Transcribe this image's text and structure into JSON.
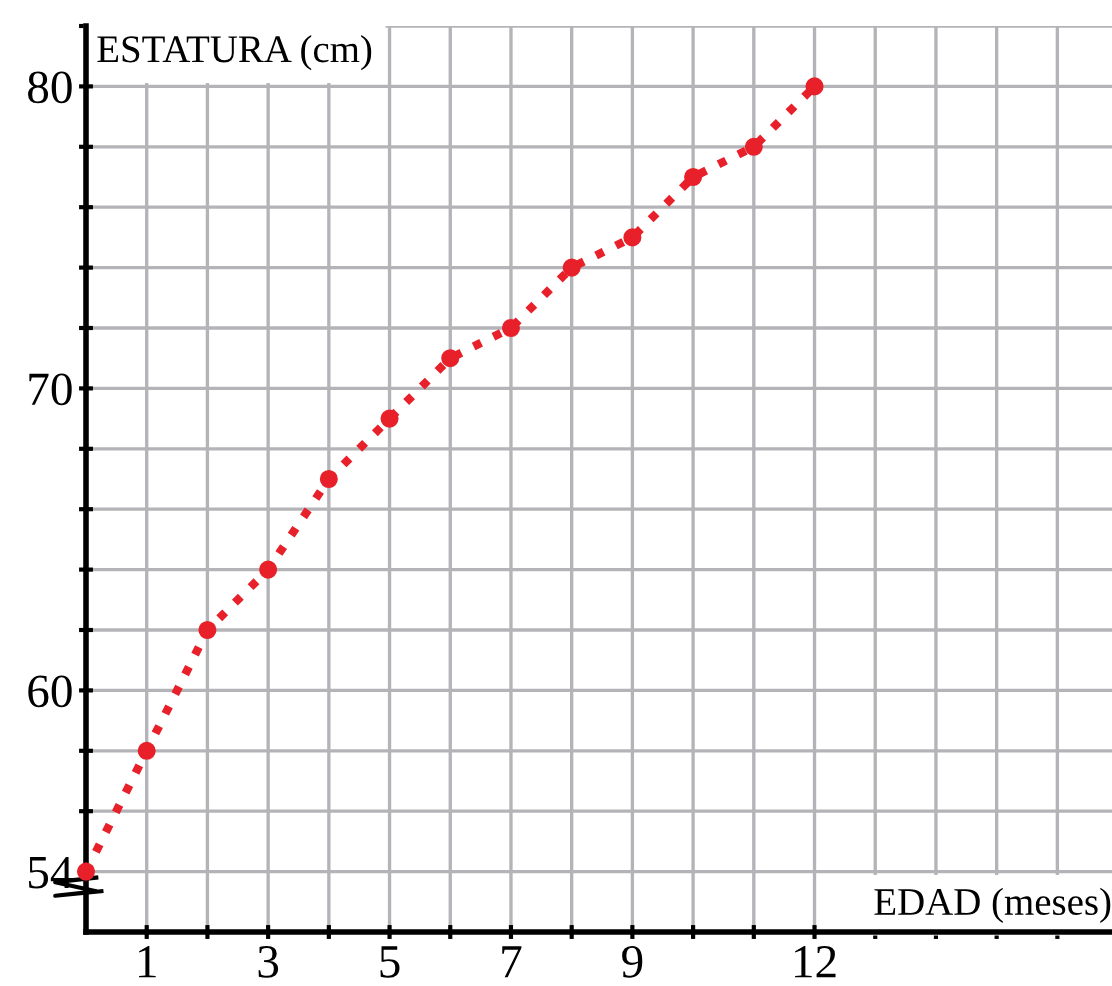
{
  "chart_data": {
    "type": "line",
    "xlabel": "EDAD (meses)",
    "ylabel": "ESTATURA (cm)",
    "x": [
      0,
      1,
      2,
      3,
      4,
      5,
      6,
      7,
      8,
      9,
      10,
      11,
      12
    ],
    "series": [
      {
        "color": "#e8202a",
        "values": [
          54,
          58,
          62,
          64,
          67,
          69,
          71,
          72,
          74,
          75,
          77,
          78,
          80
        ]
      }
    ],
    "xlim": [
      0,
      16.9
    ],
    "ylim": [
      52,
      82
    ],
    "xticks": [
      {
        "value": 1,
        "label": "1"
      },
      {
        "value": 2,
        "label": null
      },
      {
        "value": 3,
        "label": "3"
      },
      {
        "value": 4,
        "label": null
      },
      {
        "value": 5,
        "label": "5"
      },
      {
        "value": 6,
        "label": null
      },
      {
        "value": 7,
        "label": "7"
      },
      {
        "value": 8,
        "label": null
      },
      {
        "value": 9,
        "label": "9"
      },
      {
        "value": 10,
        "label": null
      },
      {
        "value": 11,
        "label": null
      },
      {
        "value": 12,
        "label": "12"
      },
      {
        "value": 13,
        "label": null
      },
      {
        "value": 14,
        "label": null
      },
      {
        "value": 15,
        "label": null
      },
      {
        "value": 16,
        "label": null
      }
    ],
    "yticks": [
      {
        "value": 54,
        "label": "54"
      },
      {
        "value": 56,
        "label": null
      },
      {
        "value": 58,
        "label": null
      },
      {
        "value": 60,
        "label": "60"
      },
      {
        "value": 62,
        "label": null
      },
      {
        "value": 64,
        "label": null
      },
      {
        "value": 66,
        "label": null
      },
      {
        "value": 68,
        "label": null
      },
      {
        "value": 70,
        "label": "70"
      },
      {
        "value": 72,
        "label": null
      },
      {
        "value": 74,
        "label": null
      },
      {
        "value": 76,
        "label": null
      },
      {
        "value": 78,
        "label": null
      },
      {
        "value": 80,
        "label": "80"
      },
      {
        "value": 82,
        "label": null
      }
    ],
    "grid": true,
    "marker": "circle",
    "line_style": "dotted"
  }
}
